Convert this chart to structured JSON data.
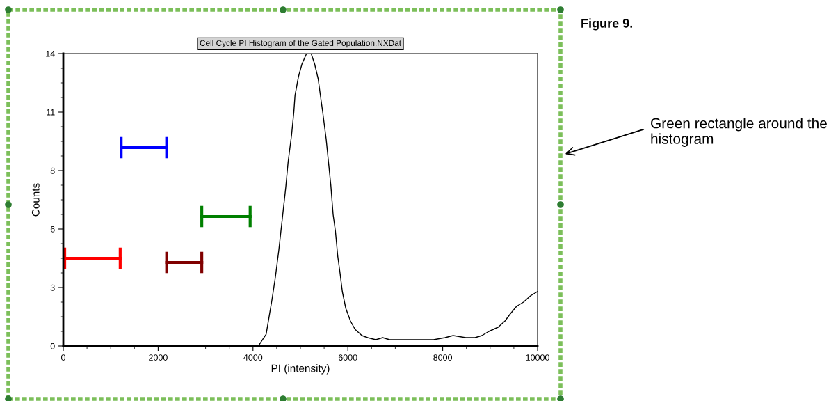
{
  "chart_data": {
    "type": "line",
    "title": "Cell Cycle PI Histogram of the Gated Population.NXDat",
    "xlabel": "PI (intensity)",
    "ylabel": "Counts",
    "xlim": [
      0,
      10000
    ],
    "ylim": [
      0,
      14
    ],
    "xticks": [
      0,
      {
        "value": 500,
        "label": null
      },
      {
        "value": 1000,
        "label": null
      },
      {
        "value": 1500,
        "label": null
      },
      2000,
      {
        "value": 2500,
        "label": null
      },
      {
        "value": 3000,
        "label": null
      },
      {
        "value": 3500,
        "label": null
      },
      4000,
      {
        "value": 4500,
        "label": null
      },
      {
        "value": 5000,
        "label": null
      },
      {
        "value": 5500,
        "label": null
      },
      6000,
      {
        "value": 6500,
        "label": null
      },
      {
        "value": 7000,
        "label": null
      },
      {
        "value": 7500,
        "label": null
      },
      8000,
      {
        "value": 8500,
        "label": null
      },
      {
        "value": 9000,
        "label": null
      },
      {
        "value": 9500,
        "label": null
      },
      10000
    ],
    "yticks": [
      {
        "value": 0,
        "label": "0"
      },
      {
        "value": 0.7,
        "label": null
      },
      {
        "value": 1.4,
        "label": null
      },
      {
        "value": 2.1,
        "label": null
      },
      {
        "value": 2.8,
        "label": "3"
      },
      {
        "value": 3.5,
        "label": null
      },
      {
        "value": 4.2,
        "label": null
      },
      {
        "value": 4.9,
        "label": null
      },
      {
        "value": 5.6,
        "label": "6"
      },
      {
        "value": 6.3,
        "label": null
      },
      {
        "value": 7.0,
        "label": null
      },
      {
        "value": 7.7,
        "label": null
      },
      {
        "value": 8.4,
        "label": "8"
      },
      {
        "value": 9.1,
        "label": null
      },
      {
        "value": 9.8,
        "label": null
      },
      {
        "value": 10.5,
        "label": null
      },
      {
        "value": 11.2,
        "label": "11"
      },
      {
        "value": 11.9,
        "label": null
      },
      {
        "value": 12.6,
        "label": null
      },
      {
        "value": 13.3,
        "label": null
      },
      {
        "value": 14,
        "label": "14"
      }
    ],
    "grid": false,
    "legend": false,
    "series": [
      {
        "color": "#000000",
        "x": [
          4100,
          4131,
          4277,
          4399,
          4472,
          4545,
          4618,
          4691,
          4740,
          4813,
          4861,
          4886,
          4959,
          5032,
          5129,
          5227,
          5300,
          5373,
          5470,
          5543,
          5592,
          5641,
          5689,
          5738,
          5787,
          5835,
          5884,
          5957,
          6054,
          6151,
          6297,
          6418,
          6589,
          6735,
          6881,
          7075,
          7270,
          7465,
          7805,
          8049,
          8219,
          8487,
          8681,
          8827,
          8973,
          9168,
          9314,
          9411,
          9557,
          9703,
          9849,
          9995
        ],
        "values": [
          0,
          0.06,
          0.56,
          2.2,
          3.3,
          4.6,
          6.1,
          7.6,
          8.8,
          10.1,
          11.2,
          12.0,
          12.9,
          13.5,
          14.0,
          14.0,
          13.5,
          12.8,
          11.2,
          9.9,
          8.8,
          7.7,
          6.3,
          5.5,
          4.3,
          3.5,
          2.6,
          1.8,
          1.2,
          0.8,
          0.5,
          0.4,
          0.3,
          0.4,
          0.3,
          0.3,
          0.3,
          0.3,
          0.3,
          0.4,
          0.5,
          0.4,
          0.4,
          0.5,
          0.7,
          0.9,
          1.2,
          1.5,
          1.9,
          2.1,
          2.4,
          2.6
        ]
      },
      {
        "type": "line",
        "color": "#ff0000",
        "x": [
          30,
          1200
        ],
        "values": [
          4.2,
          4.2
        ]
      },
      {
        "type": "line",
        "color": "#0000ff",
        "x": [
          1220,
          2180
        ],
        "values": [
          9.5,
          9.5
        ]
      },
      {
        "type": "line",
        "color": "#008000",
        "x": [
          2920,
          3940
        ],
        "values": [
          6.2,
          6.2
        ]
      },
      {
        "type": "line",
        "color": "#800000",
        "x": [
          2180,
          2920
        ],
        "values": [
          4.0,
          4.0
        ]
      }
    ],
    "annotations": [
      "Figure 9.",
      "Green rectangle around the histogram"
    ]
  }
}
